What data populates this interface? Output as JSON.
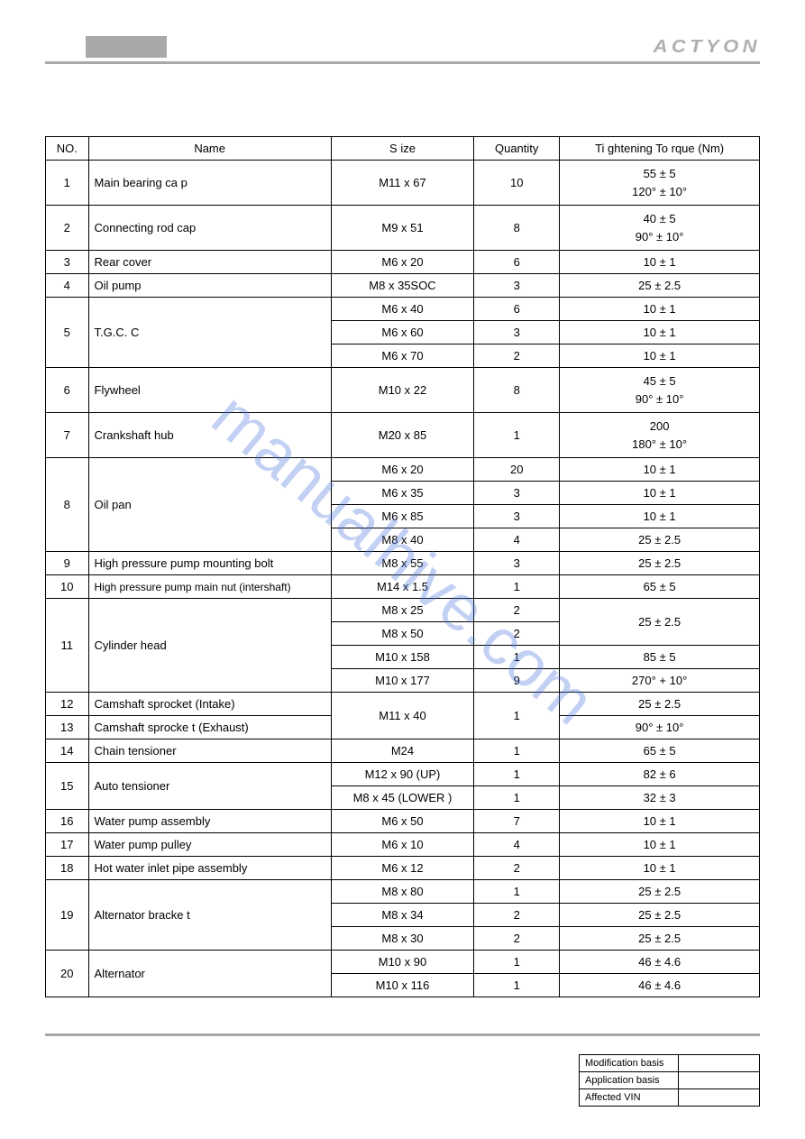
{
  "header": {
    "brand": "ACTYON"
  },
  "table": {
    "headers": {
      "no": "NO.",
      "name": "Name",
      "size": "S ize",
      "qty": "Quantity",
      "torque": "Ti ghtening  To rque  (Nm)"
    },
    "rows": {
      "r1": {
        "no": "1",
        "name": "Main bearing ca p",
        "size": "M11 x 67",
        "qty": "10",
        "t1": "55 ± 5",
        "t2": "120° ± 10°"
      },
      "r2": {
        "no": "2",
        "name": "Connecting  rod cap",
        "size": "M9 x 51",
        "qty": "8",
        "t1": "40 ± 5",
        "t2": "90° ± 10°"
      },
      "r3": {
        "no": "3",
        "name": "Rear  cover",
        "size": "M6 x 20",
        "qty": "6",
        "t": "10 ± 1"
      },
      "r4": {
        "no": "4",
        "name": "Oil pump",
        "size": "M8 x 35SOC",
        "qty": "3",
        "t": "25 ± 2.5"
      },
      "r5": {
        "no": "5",
        "name": "T.G.C.  C",
        "s1": "M6 x 40",
        "q1": "6",
        "t_1": "10 ± 1",
        "s2": "M6 x 60",
        "q2": "3",
        "t_2": "10 ± 1",
        "s3": "M6 x 70",
        "q3": "2",
        "t_3": "10 ± 1"
      },
      "r6": {
        "no": "6",
        "name": "Flywheel",
        "size": "M10 x 22",
        "qty": "8",
        "t1": "45 ± 5",
        "t2": "90° ± 10°"
      },
      "r7": {
        "no": "7",
        "name": "Crankshaft   hub",
        "size": "M20 x 85",
        "qty": "1",
        "t1": "200",
        "t2": "180° ± 10°"
      },
      "r8": {
        "no": "8",
        "name": "Oil pan",
        "s1": "M6 x 20",
        "q1": "20",
        "t_1": "10 ± 1",
        "s2": "M6 x 35",
        "q2": "3",
        "t_2": "10 ± 1",
        "s3": "M6 x 85",
        "q3": "3",
        "t_3": "10 ± 1",
        "s4": "M8 x 40",
        "q4": "4",
        "t_4": "25 ± 2.5"
      },
      "r9": {
        "no": "9",
        "name": "High pressure  pump mounting bolt",
        "size": "M8 x 55",
        "qty": "3",
        "t": "25 ± 2.5"
      },
      "r10": {
        "no": "10",
        "name": "High pressure  pump main nut (intershaft)",
        "size": "M14 x 1.5",
        "qty": "1",
        "t": "65 ± 5"
      },
      "r11": {
        "no": "11",
        "name": "Cylinder  head",
        "s1": "M8 x 25",
        "q1": "2",
        "t_12": "25 ± 2.5",
        "s2": "M8 x 50",
        "q2": "2",
        "s3": "M10 x 158",
        "q3": "1",
        "t_3": "85 ± 5",
        "s4": "M10 x 177",
        "q4": "9",
        "t_4": "270° + 10°"
      },
      "r12": {
        "no": "12",
        "name": "Camshaft  sprocket  (Intake)",
        "t": "25 ± 2.5"
      },
      "r13": {
        "no": "13",
        "name": "Camshaft  sprocke t (Exhaust)",
        "t": "90° ± 10°"
      },
      "r1213": {
        "size": "M11 x 40",
        "qty": "1"
      },
      "r14": {
        "no": "14",
        "name": "Chain  tensioner",
        "size": "M24",
        "qty": "1",
        "t": "65 ± 5"
      },
      "r15": {
        "no": "15",
        "name": "Auto tensioner",
        "s1": "M12 x 90 (UP)",
        "q1": "1",
        "t_1": "82 ± 6",
        "s2": "M8 x 45 (LOWER  )",
        "q2": "1",
        "t_2": "32 ± 3"
      },
      "r16": {
        "no": "16",
        "name": "Water  pump assembly",
        "size": "M6 x 50",
        "qty": "7",
        "t": "10 ± 1"
      },
      "r17": {
        "no": "17",
        "name": "Water  pump pulley",
        "size": "M6 x 10",
        "qty": "4",
        "t": "10 ± 1"
      },
      "r18": {
        "no": "18",
        "name": "Hot water inlet pipe assembly",
        "size": "M6 x 12",
        "qty": "2",
        "t": "10 ± 1"
      },
      "r19": {
        "no": "19",
        "name": "Alternator  bracke t",
        "s1": "M8 x 80",
        "q1": "1",
        "t_1": "25 ± 2.5",
        "s2": "M8 x 34",
        "q2": "2",
        "t_2": "25 ± 2.5",
        "s3": "M8 x 30",
        "q3": "2",
        "t_3": "25 ± 2.5"
      },
      "r20": {
        "no": "20",
        "name": "Alternator",
        "s1": "M10 x 90",
        "q1": "1",
        "t_1": "46 ± 4.6",
        "s2": "M10 x 116",
        "q2": "1",
        "t_2": "46 ± 4.6"
      }
    }
  },
  "watermark": "manualhive.com",
  "footer": {
    "mod": "Modification basis",
    "app": "Application basis",
    "vin": "Affected VIN"
  }
}
